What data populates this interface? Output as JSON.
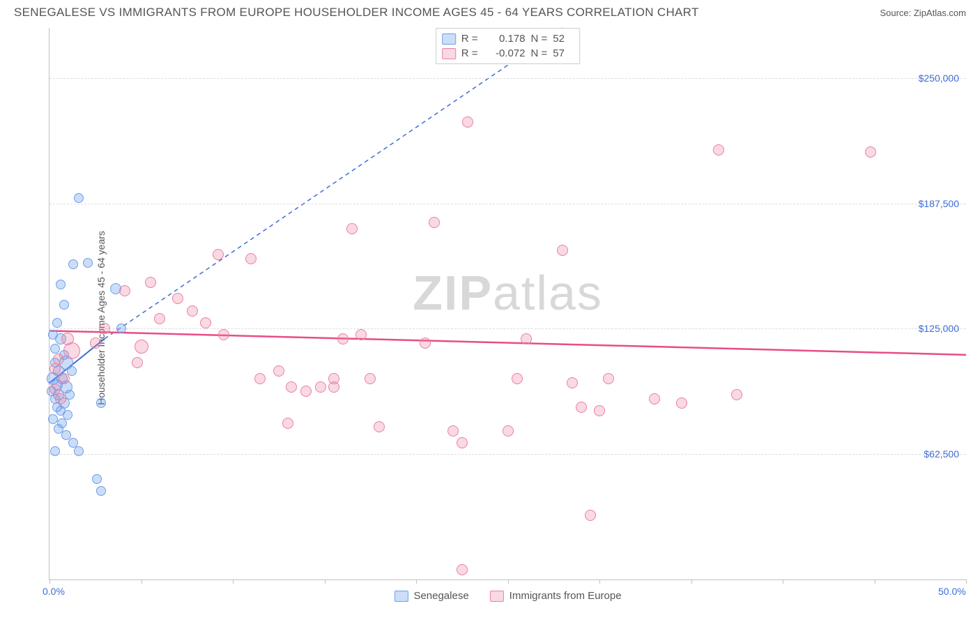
{
  "title": "SENEGALESE VS IMMIGRANTS FROM EUROPE HOUSEHOLDER INCOME AGES 45 - 64 YEARS CORRELATION CHART",
  "source_label": "Source: ",
  "source_name": "ZipAtlas.com",
  "ylabel": "Householder Income Ages 45 - 64 years",
  "watermark_a": "ZIP",
  "watermark_b": "atlas",
  "chart": {
    "type": "scatter",
    "xlim": [
      0,
      50
    ],
    "ylim": [
      0,
      275000
    ],
    "x_ticks": [
      0,
      5,
      10,
      15,
      20,
      25,
      30,
      35,
      40,
      45,
      50
    ],
    "x_tick_labels": {
      "0": "0.0%",
      "50": "50.0%"
    },
    "y_gridlines": [
      62500,
      125000,
      187500,
      250000
    ],
    "y_tick_labels": {
      "62500": "$62,500",
      "125000": "$125,000",
      "187500": "$187,500",
      "250000": "$250,000"
    },
    "background_color": "#ffffff",
    "grid_color": "#dddddd",
    "axis_color": "#c0c0c0",
    "tick_label_color": "#3d6dd5",
    "title_color": "#555555",
    "title_fontsize": 17,
    "label_fontsize": 14
  },
  "series": [
    {
      "name": "Senegalese",
      "color_fill": "rgba(109,158,235,0.35)",
      "color_stroke": "#6d9eeb",
      "correlation_R": "0.178",
      "correlation_N": "52",
      "trend": {
        "style": "solid-then-dashed",
        "color": "#3d6dd5",
        "width": 2,
        "solid_segment": {
          "x1": 0,
          "y1": 98000,
          "x2": 3,
          "y2": 120000
        },
        "dashed_segment": {
          "x1": 3,
          "y1": 120000,
          "x2": 28,
          "y2": 275000
        }
      },
      "points": [
        {
          "x": 1.6,
          "y": 190000,
          "r": 7
        },
        {
          "x": 1.3,
          "y": 157000,
          "r": 7
        },
        {
          "x": 2.1,
          "y": 158000,
          "r": 7
        },
        {
          "x": 0.6,
          "y": 147000,
          "r": 7
        },
        {
          "x": 0.8,
          "y": 137000,
          "r": 7
        },
        {
          "x": 3.6,
          "y": 145000,
          "r": 8
        },
        {
          "x": 3.9,
          "y": 125000,
          "r": 7
        },
        {
          "x": 0.4,
          "y": 128000,
          "r": 7
        },
        {
          "x": 0.2,
          "y": 122000,
          "r": 7
        },
        {
          "x": 0.6,
          "y": 120000,
          "r": 8
        },
        {
          "x": 0.3,
          "y": 115000,
          "r": 7
        },
        {
          "x": 0.8,
          "y": 112000,
          "r": 7
        },
        {
          "x": 0.9,
          "y": 108000,
          "r": 10
        },
        {
          "x": 0.3,
          "y": 108000,
          "r": 7
        },
        {
          "x": 0.5,
          "y": 104000,
          "r": 8
        },
        {
          "x": 1.2,
          "y": 104000,
          "r": 7
        },
        {
          "x": 0.2,
          "y": 100000,
          "r": 9
        },
        {
          "x": 0.7,
          "y": 100000,
          "r": 8
        },
        {
          "x": 0.4,
          "y": 97000,
          "r": 8
        },
        {
          "x": 0.9,
          "y": 96000,
          "r": 9
        },
        {
          "x": 0.1,
          "y": 94000,
          "r": 7
        },
        {
          "x": 0.5,
          "y": 92000,
          "r": 8
        },
        {
          "x": 1.1,
          "y": 92000,
          "r": 7
        },
        {
          "x": 0.3,
          "y": 90000,
          "r": 7
        },
        {
          "x": 0.8,
          "y": 88000,
          "r": 8
        },
        {
          "x": 2.8,
          "y": 88000,
          "r": 7
        },
        {
          "x": 0.4,
          "y": 86000,
          "r": 7
        },
        {
          "x": 0.6,
          "y": 84000,
          "r": 7
        },
        {
          "x": 1.0,
          "y": 82000,
          "r": 7
        },
        {
          "x": 0.2,
          "y": 80000,
          "r": 7
        },
        {
          "x": 0.7,
          "y": 78000,
          "r": 7
        },
        {
          "x": 0.5,
          "y": 75000,
          "r": 7
        },
        {
          "x": 0.9,
          "y": 72000,
          "r": 7
        },
        {
          "x": 1.3,
          "y": 68000,
          "r": 7
        },
        {
          "x": 1.6,
          "y": 64000,
          "r": 7
        },
        {
          "x": 0.3,
          "y": 64000,
          "r": 7
        },
        {
          "x": 2.6,
          "y": 50000,
          "r": 7
        },
        {
          "x": 2.8,
          "y": 44000,
          "r": 7
        }
      ]
    },
    {
      "name": "Immigants from Europe",
      "legend_label": "Immigrants from Europe",
      "color_fill": "rgba(234,128,160,0.3)",
      "color_stroke": "#ea80a0",
      "correlation_R": "-0.072",
      "correlation_N": "57",
      "trend": {
        "style": "solid",
        "color": "#e84c88",
        "width": 2.5,
        "solid_segment": {
          "x1": 0,
          "y1": 124000,
          "x2": 50,
          "y2": 112000
        }
      },
      "points": [
        {
          "x": 22.8,
          "y": 228000,
          "r": 8
        },
        {
          "x": 36.5,
          "y": 214000,
          "r": 8
        },
        {
          "x": 44.8,
          "y": 213000,
          "r": 8
        },
        {
          "x": 16.5,
          "y": 175000,
          "r": 8
        },
        {
          "x": 21.0,
          "y": 178000,
          "r": 8
        },
        {
          "x": 28.0,
          "y": 164000,
          "r": 8
        },
        {
          "x": 9.2,
          "y": 162000,
          "r": 8
        },
        {
          "x": 11.0,
          "y": 160000,
          "r": 8
        },
        {
          "x": 4.1,
          "y": 144000,
          "r": 8
        },
        {
          "x": 5.5,
          "y": 148000,
          "r": 8
        },
        {
          "x": 7.0,
          "y": 140000,
          "r": 8
        },
        {
          "x": 6.0,
          "y": 130000,
          "r": 8
        },
        {
          "x": 7.8,
          "y": 134000,
          "r": 8
        },
        {
          "x": 8.5,
          "y": 128000,
          "r": 8
        },
        {
          "x": 9.5,
          "y": 122000,
          "r": 8
        },
        {
          "x": 3.0,
          "y": 125000,
          "r": 8
        },
        {
          "x": 2.5,
          "y": 118000,
          "r": 8
        },
        {
          "x": 5.0,
          "y": 116000,
          "r": 10
        },
        {
          "x": 4.8,
          "y": 108000,
          "r": 8
        },
        {
          "x": 1.0,
          "y": 120000,
          "r": 9
        },
        {
          "x": 1.2,
          "y": 114000,
          "r": 12
        },
        {
          "x": 0.5,
          "y": 110000,
          "r": 8
        },
        {
          "x": 0.3,
          "y": 105000,
          "r": 8
        },
        {
          "x": 0.8,
          "y": 100000,
          "r": 8
        },
        {
          "x": 0.3,
          "y": 95000,
          "r": 8
        },
        {
          "x": 0.6,
          "y": 90000,
          "r": 8
        },
        {
          "x": 11.5,
          "y": 100000,
          "r": 8
        },
        {
          "x": 12.5,
          "y": 104000,
          "r": 8
        },
        {
          "x": 13.2,
          "y": 96000,
          "r": 8
        },
        {
          "x": 14.0,
          "y": 94000,
          "r": 8
        },
        {
          "x": 14.8,
          "y": 96000,
          "r": 8
        },
        {
          "x": 15.5,
          "y": 100000,
          "r": 8
        },
        {
          "x": 16.0,
          "y": 120000,
          "r": 8
        },
        {
          "x": 17.0,
          "y": 122000,
          "r": 8
        },
        {
          "x": 17.5,
          "y": 100000,
          "r": 8
        },
        {
          "x": 18.0,
          "y": 76000,
          "r": 8
        },
        {
          "x": 20.5,
          "y": 118000,
          "r": 8
        },
        {
          "x": 22.0,
          "y": 74000,
          "r": 8
        },
        {
          "x": 22.5,
          "y": 5000,
          "r": 8
        },
        {
          "x": 22.5,
          "y": 68000,
          "r": 8
        },
        {
          "x": 25.0,
          "y": 74000,
          "r": 8
        },
        {
          "x": 25.5,
          "y": 100000,
          "r": 8
        },
        {
          "x": 26.0,
          "y": 120000,
          "r": 8
        },
        {
          "x": 28.5,
          "y": 98000,
          "r": 8
        },
        {
          "x": 29.0,
          "y": 86000,
          "r": 8
        },
        {
          "x": 30.0,
          "y": 84000,
          "r": 8
        },
        {
          "x": 30.5,
          "y": 100000,
          "r": 8
        },
        {
          "x": 29.5,
          "y": 32000,
          "r": 8
        },
        {
          "x": 33.0,
          "y": 90000,
          "r": 8
        },
        {
          "x": 34.5,
          "y": 88000,
          "r": 8
        },
        {
          "x": 37.5,
          "y": 92000,
          "r": 8
        },
        {
          "x": 13.0,
          "y": 78000,
          "r": 8
        },
        {
          "x": 15.5,
          "y": 96000,
          "r": 8
        }
      ]
    }
  ],
  "stats_box": {
    "R_label": "R =",
    "N_label": "N ="
  },
  "legend": {
    "series1": "Senegalese",
    "series2": "Immigrants from Europe"
  }
}
